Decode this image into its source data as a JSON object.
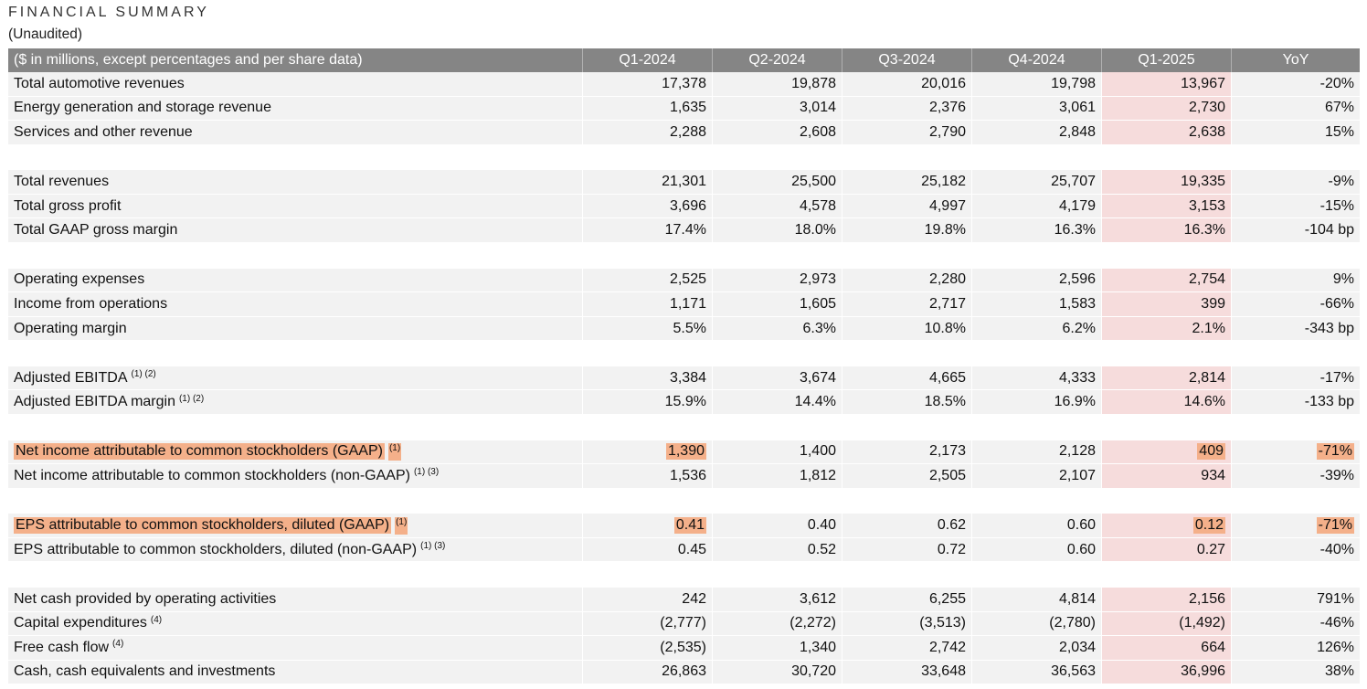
{
  "header": {
    "title": "FINANCIAL SUMMARY",
    "subtitle": "(Unaudited)"
  },
  "table": {
    "columns": [
      "($ in millions, except percentages and per share data)",
      "Q1-2024",
      "Q2-2024",
      "Q3-2024",
      "Q4-2024",
      "Q1-2025",
      "YoY"
    ],
    "rows": [
      {
        "label": "Total automotive revenues",
        "sup": "",
        "values": [
          "17,378",
          "19,878",
          "20,016",
          "19,798",
          "13,967",
          "-20%"
        ]
      },
      {
        "label": "Energy generation and storage revenue",
        "sup": "",
        "values": [
          "1,635",
          "3,014",
          "2,376",
          "3,061",
          "2,730",
          "67%"
        ]
      },
      {
        "label": "Services and other revenue",
        "sup": "",
        "values": [
          "2,288",
          "2,608",
          "2,790",
          "2,848",
          "2,638",
          "15%"
        ]
      },
      {
        "label": "Total revenues",
        "sup": "",
        "values": [
          "21,301",
          "25,500",
          "25,182",
          "25,707",
          "19,335",
          "-9%"
        ]
      },
      {
        "label": "Total gross profit",
        "sup": "",
        "values": [
          "3,696",
          "4,578",
          "4,997",
          "4,179",
          "3,153",
          "-15%"
        ]
      },
      {
        "label": "Total GAAP gross margin",
        "sup": "",
        "values": [
          "17.4%",
          "18.0%",
          "19.8%",
          "16.3%",
          "16.3%",
          "-104 bp"
        ]
      },
      {
        "label": "Operating expenses",
        "sup": "",
        "values": [
          "2,525",
          "2,973",
          "2,280",
          "2,596",
          "2,754",
          "9%"
        ]
      },
      {
        "label": "Income from operations",
        "sup": "",
        "values": [
          "1,171",
          "1,605",
          "2,717",
          "1,583",
          "399",
          "-66%"
        ]
      },
      {
        "label": "Operating margin",
        "sup": "",
        "values": [
          "5.5%",
          "6.3%",
          "10.8%",
          "6.2%",
          "2.1%",
          "-343 bp"
        ]
      },
      {
        "label": "Adjusted EBITDA",
        "sup": "(1) (2)",
        "values": [
          "3,384",
          "3,674",
          "4,665",
          "4,333",
          "2,814",
          "-17%"
        ]
      },
      {
        "label": "Adjusted EBITDA margin",
        "sup": "(1) (2)",
        "values": [
          "15.9%",
          "14.4%",
          "18.5%",
          "16.9%",
          "14.6%",
          "-133 bp"
        ]
      },
      {
        "label": "Net income attributable to common stockholders (GAAP)",
        "sup": "(1)",
        "values": [
          "1,390",
          "1,400",
          "2,173",
          "2,128",
          "409",
          "-71%"
        ]
      },
      {
        "label": "Net income attributable to common stockholders (non-GAAP)",
        "sup": "(1) (3)",
        "values": [
          "1,536",
          "1,812",
          "2,505",
          "2,107",
          "934",
          "-39%"
        ]
      },
      {
        "label": "EPS attributable to common stockholders, diluted (GAAP)",
        "sup": "(1)",
        "values": [
          "0.41",
          "0.40",
          "0.62",
          "0.60",
          "0.12",
          "-71%"
        ]
      },
      {
        "label": "EPS attributable to common stockholders, diluted (non-GAAP)",
        "sup": "(1) (3)",
        "values": [
          "0.45",
          "0.52",
          "0.72",
          "0.60",
          "0.27",
          "-40%"
        ]
      },
      {
        "label": "Net cash provided by operating activities",
        "sup": "",
        "values": [
          "242",
          "3,612",
          "6,255",
          "4,814",
          "2,156",
          "791%"
        ]
      },
      {
        "label": "Capital expenditures",
        "sup": "(4)",
        "values": [
          "(2,777)",
          "(2,272)",
          "(3,513)",
          "(2,780)",
          "(1,492)",
          "-46%"
        ]
      },
      {
        "label": "Free cash flow",
        "sup": "(4)",
        "values": [
          "(2,535)",
          "1,340",
          "2,742",
          "2,034",
          "664",
          "126%"
        ]
      },
      {
        "label": "Cash, cash equivalents and investments",
        "sup": "",
        "values": [
          "26,863",
          "30,720",
          "33,648",
          "36,563",
          "36,996",
          "38%"
        ]
      }
    ]
  },
  "colors": {
    "header_bg": "#858585",
    "row_bg": "#f2f2f2",
    "q1_2025_bg": "#f6dcdc",
    "highlight": "#f4b08a"
  }
}
